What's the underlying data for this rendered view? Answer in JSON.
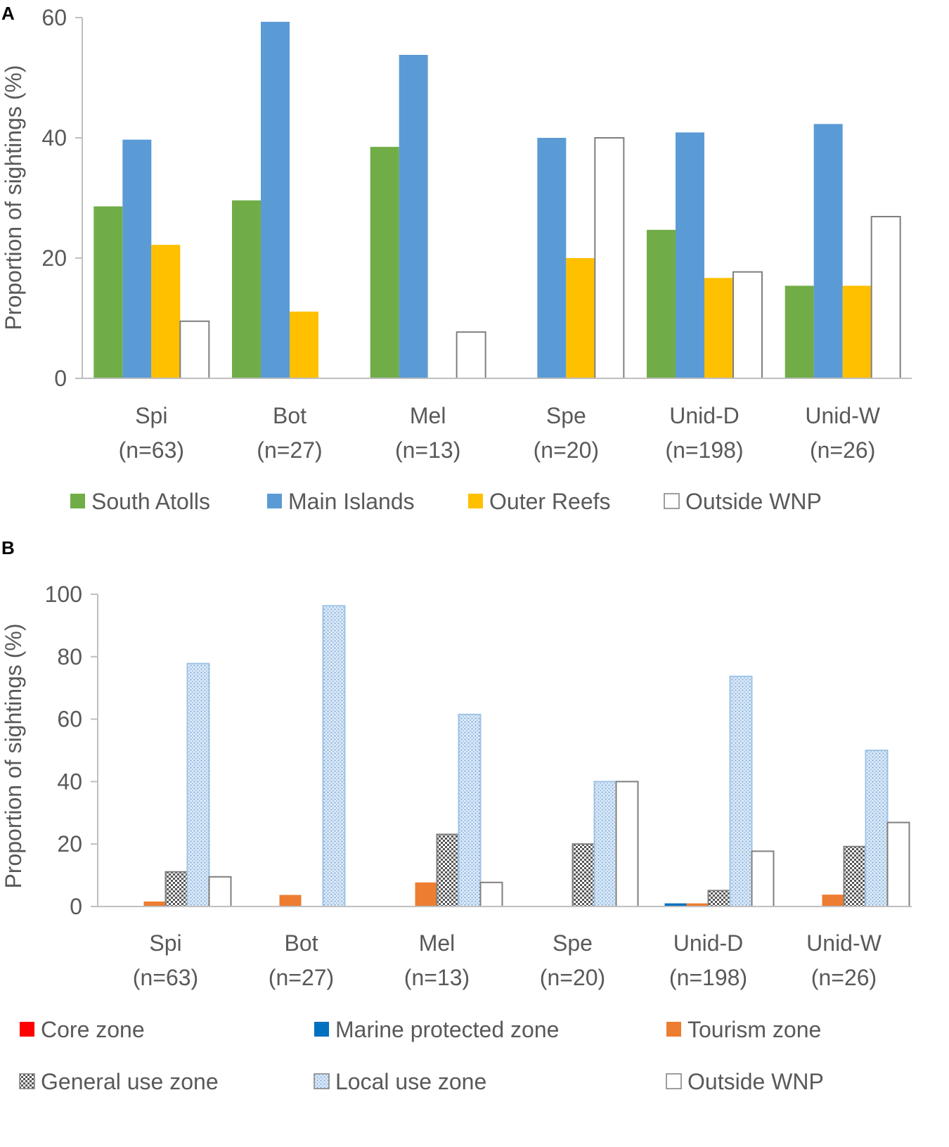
{
  "chart_data": [
    {
      "panel_label": "A",
      "type": "bar",
      "ylabel": "Proportion of sightings (%)",
      "ylim": [
        0,
        60
      ],
      "yticks": [
        0,
        20,
        40,
        60
      ],
      "categories": [
        {
          "name": "Spi",
          "n": "(n=63)"
        },
        {
          "name": "Bot",
          "n": "(n=27)"
        },
        {
          "name": "Mel",
          "n": "(n=13)"
        },
        {
          "name": "Spe",
          "n": "(n=20)"
        },
        {
          "name": "Unid-D",
          "n": "(n=198)"
        },
        {
          "name": "Unid-W",
          "n": "(n=26)"
        }
      ],
      "series": [
        {
          "name": "South Atolls",
          "color": "#70ad47",
          "pattern": "solid",
          "values": [
            28.6,
            29.6,
            38.5,
            0,
            24.7,
            15.4
          ]
        },
        {
          "name": "Main Islands",
          "color": "#5b9bd5",
          "pattern": "solid",
          "values": [
            39.7,
            59.3,
            53.8,
            40,
            40.9,
            42.3
          ]
        },
        {
          "name": "Outer Reefs",
          "color": "#ffc000",
          "pattern": "solid",
          "values": [
            22.2,
            11.1,
            0,
            20,
            16.7,
            15.4
          ]
        },
        {
          "name": "Outside WNP",
          "color": "#ffffff",
          "pattern": "outline",
          "values": [
            9.5,
            0,
            7.7,
            40,
            17.7,
            26.9
          ]
        }
      ],
      "legend_position": "bottom"
    },
    {
      "panel_label": "B",
      "type": "bar",
      "ylabel": "Proportion of sightings (%)",
      "ylim": [
        0,
        100
      ],
      "yticks": [
        0,
        20,
        40,
        60,
        80,
        100
      ],
      "categories": [
        {
          "name": "Spi",
          "n": "(n=63)"
        },
        {
          "name": "Bot",
          "n": "(n=27)"
        },
        {
          "name": "Mel",
          "n": "(n=13)"
        },
        {
          "name": "Spe",
          "n": "(n=20)"
        },
        {
          "name": "Unid-D",
          "n": "(n=198)"
        },
        {
          "name": "Unid-W",
          "n": "(n=26)"
        }
      ],
      "series": [
        {
          "name": "Core zone",
          "color": "#ff0000",
          "pattern": "solid",
          "values": [
            0,
            0,
            0,
            0,
            0,
            0
          ]
        },
        {
          "name": "Marine protected zone",
          "color": "#0070c0",
          "pattern": "solid",
          "values": [
            0,
            0,
            0,
            0,
            1,
            0
          ]
        },
        {
          "name": "Tourism zone",
          "color": "#ed7d31",
          "pattern": "solid",
          "values": [
            1.6,
            3.7,
            7.7,
            0,
            1,
            3.8
          ]
        },
        {
          "name": "General use zone",
          "color": "#ffffff",
          "pattern": "checker",
          "values": [
            11.1,
            0,
            23.1,
            20,
            5.1,
            19.2
          ]
        },
        {
          "name": "Local use zone",
          "color": "#bdd7ee",
          "pattern": "dots-blue",
          "values": [
            77.8,
            96.3,
            61.5,
            40,
            73.7,
            50
          ]
        },
        {
          "name": "Outside WNP",
          "color": "#ffffff",
          "pattern": "outline",
          "values": [
            9.5,
            0,
            7.7,
            40,
            17.7,
            26.9
          ]
        }
      ],
      "legend_position": "bottom"
    }
  ]
}
